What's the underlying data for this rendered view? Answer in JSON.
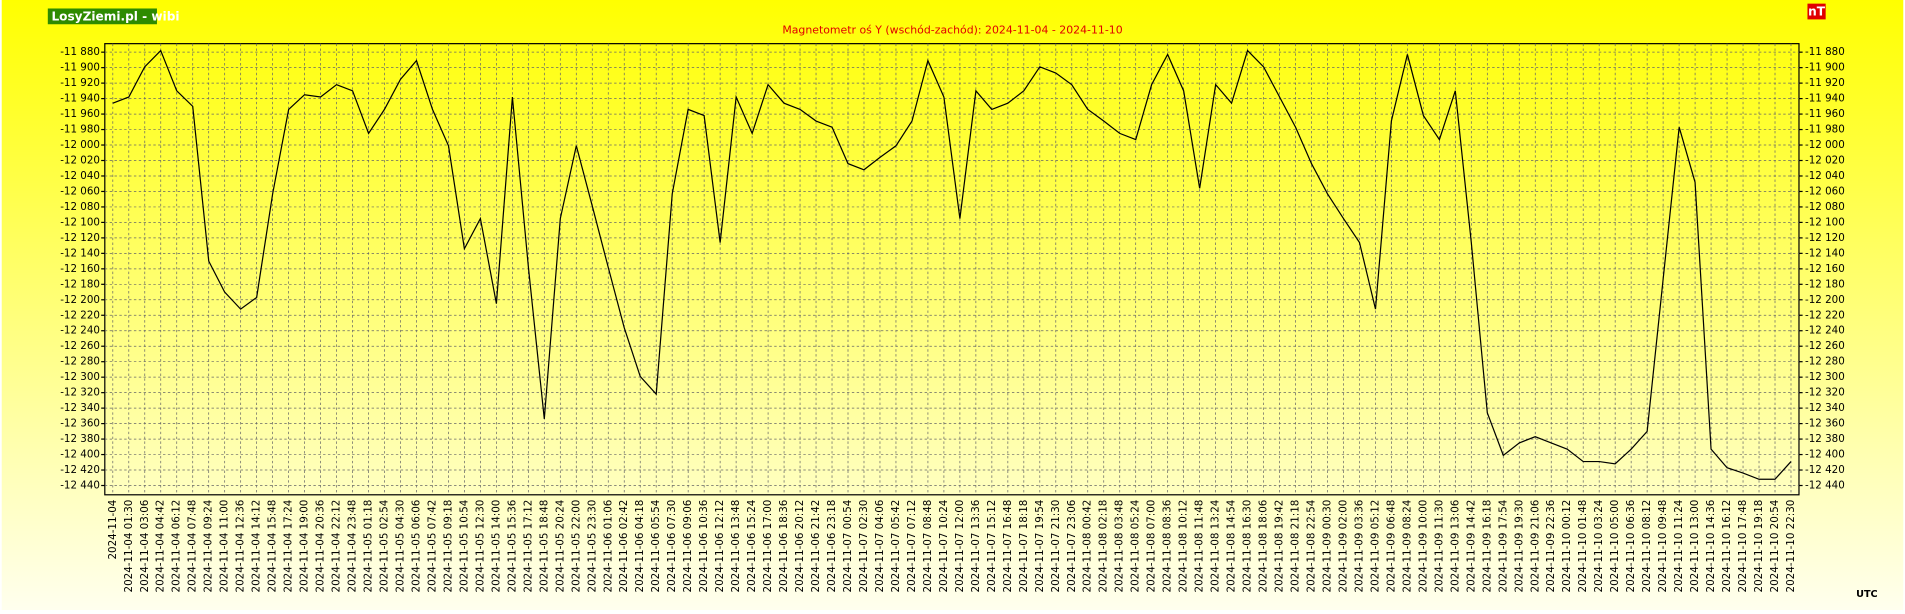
{
  "logo": "LosyZiemi.pl - wibi",
  "unit": "nT",
  "timezone": "UTC",
  "chart_data": {
    "type": "line",
    "title": "Magnetometr oś Y (wschód-zachód): 2024-11-04 - 2024-11-10",
    "grid": true,
    "ylim": [
      -12452,
      -11869
    ],
    "yticks": [
      {
        "value": -11880,
        "label": "-11 880"
      },
      {
        "value": -11900,
        "label": "-11 900"
      },
      {
        "value": -11920,
        "label": "-11 920"
      },
      {
        "value": -11940,
        "label": "-11 940"
      },
      {
        "value": -11960,
        "label": "-11 960"
      },
      {
        "value": -11980,
        "label": "-11 980"
      },
      {
        "value": -12000,
        "label": "-12 000"
      },
      {
        "value": -12020,
        "label": "-12 020"
      },
      {
        "value": -12040,
        "label": "-12 040"
      },
      {
        "value": -12060,
        "label": "-12 060"
      },
      {
        "value": -12080,
        "label": "-12 080"
      },
      {
        "value": -12100,
        "label": "-12 100"
      },
      {
        "value": -12120,
        "label": "-12 120"
      },
      {
        "value": -12140,
        "label": "-12 140"
      },
      {
        "value": -12160,
        "label": "-12 160"
      },
      {
        "value": -12180,
        "label": "-12 180"
      },
      {
        "value": -12200,
        "label": "-12 200"
      },
      {
        "value": -12220,
        "label": "-12 220"
      },
      {
        "value": -12240,
        "label": "-12 240"
      },
      {
        "value": -12260,
        "label": "-12 260"
      },
      {
        "value": -12280,
        "label": "-12 280"
      },
      {
        "value": -12300,
        "label": "-12 300"
      },
      {
        "value": -12320,
        "label": "-12 320"
      },
      {
        "value": -12340,
        "label": "-12 340"
      },
      {
        "value": -12360,
        "label": "-12 360"
      },
      {
        "value": -12380,
        "label": "-12 380"
      },
      {
        "value": -12400,
        "label": "-12 400"
      },
      {
        "value": -12420,
        "label": "-12 420"
      },
      {
        "value": -12440,
        "label": "-12 440"
      }
    ],
    "categories": [
      "2024-11-04",
      "2024-11-04 01:30",
      "2024-11-04 03:06",
      "2024-11-04 04:42",
      "2024-11-04 06:12",
      "2024-11-04 07:48",
      "2024-11-04 09:24",
      "2024-11-04 11:00",
      "2024-11-04 12:36",
      "2024-11-04 14:12",
      "2024-11-04 15:48",
      "2024-11-04 17:24",
      "2024-11-04 19:00",
      "2024-11-04 20:36",
      "2024-11-04 22:12",
      "2024-11-04 23:48",
      "2024-11-05 01:18",
      "2024-11-05 02:54",
      "2024-11-05 04:30",
      "2024-11-05 06:06",
      "2024-11-05 07:42",
      "2024-11-05 09:18",
      "2024-11-05 10:54",
      "2024-11-05 12:30",
      "2024-11-05 14:00",
      "2024-11-05 15:36",
      "2024-11-05 17:12",
      "2024-11-05 18:48",
      "2024-11-05 20:24",
      "2024-11-05 22:00",
      "2024-11-05 23:30",
      "2024-11-06 01:06",
      "2024-11-06 02:42",
      "2024-11-06 04:18",
      "2024-11-06 05:54",
      "2024-11-06 07:30",
      "2024-11-06 09:06",
      "2024-11-06 10:36",
      "2024-11-06 12:12",
      "2024-11-06 13:48",
      "2024-11-06 15:24",
      "2024-11-06 17:00",
      "2024-11-06 18:36",
      "2024-11-06 20:12",
      "2024-11-06 21:42",
      "2024-11-06 23:18",
      "2024-11-07 00:54",
      "2024-11-07 02:30",
      "2024-11-07 04:06",
      "2024-11-07 05:42",
      "2024-11-07 07:12",
      "2024-11-07 08:48",
      "2024-11-07 10:24",
      "2024-11-07 12:00",
      "2024-11-07 13:36",
      "2024-11-07 15:12",
      "2024-11-07 16:48",
      "2024-11-07 18:18",
      "2024-11-07 19:54",
      "2024-11-07 21:30",
      "2024-11-07 23:06",
      "2024-11-08 00:42",
      "2024-11-08 02:18",
      "2024-11-08 03:48",
      "2024-11-08 05:24",
      "2024-11-08 07:00",
      "2024-11-08 08:36",
      "2024-11-08 10:12",
      "2024-11-08 11:48",
      "2024-11-08 13:24",
      "2024-11-08 14:54",
      "2024-11-08 16:30",
      "2024-11-08 18:06",
      "2024-11-08 19:42",
      "2024-11-08 21:18",
      "2024-11-08 22:54",
      "2024-11-09 00:30",
      "2024-11-09 02:00",
      "2024-11-09 03:36",
      "2024-11-09 05:12",
      "2024-11-09 06:48",
      "2024-11-09 08:24",
      "2024-11-09 10:00",
      "2024-11-09 11:30",
      "2024-11-09 13:06",
      "2024-11-09 14:42",
      "2024-11-09 16:18",
      "2024-11-09 17:54",
      "2024-11-09 19:30",
      "2024-11-09 21:06",
      "2024-11-09 22:36",
      "2024-11-10 00:12",
      "2024-11-10 01:48",
      "2024-11-10 03:24",
      "2024-11-10 05:00",
      "2024-11-10 06:36",
      "2024-11-10 08:12",
      "2024-11-10 09:48",
      "2024-11-10 11:24",
      "2024-11-10 13:00",
      "2024-11-10 14:36",
      "2024-11-10 16:12",
      "2024-11-10 17:48",
      "2024-11-10 19:18",
      "2024-11-10 20:54",
      "2024-11-10 22:30"
    ],
    "series": [
      {
        "color": "#000000",
        "values": [
          -11946,
          -11938,
          -11899,
          -11878,
          -11930,
          -11950,
          -12150,
          -12190,
          -12212,
          -12197,
          -12063,
          -11954,
          -11935,
          -11938,
          -11922,
          -11930,
          -11985,
          -11954,
          -11915,
          -11891,
          -11954,
          -12001,
          -12134,
          -12095,
          -12205,
          -11938,
          -12158,
          -12354,
          -12095,
          -12001,
          -12079,
          -12158,
          -12236,
          -12299,
          -12322,
          -12063,
          -11954,
          -11962,
          -12126,
          -11938,
          -11985,
          -11922,
          -11946,
          -11954,
          -11969,
          -11977,
          -12024,
          -12032,
          -12016,
          -12001,
          -11969,
          -11891,
          -11938,
          -12095,
          -11930,
          -11954,
          -11946,
          -11930,
          -11899,
          -11907,
          -11922,
          -11954,
          -11969,
          -11985,
          -11993,
          -11922,
          -11883,
          -11930,
          -12056,
          -11922,
          -11946,
          -11878,
          -11899,
          -11938,
          -11977,
          -12024,
          -12063,
          -12095,
          -12126,
          -12212,
          -11969,
          -11883,
          -11962,
          -11993,
          -11930,
          -12126,
          -12346,
          -12401,
          -12385,
          -12377,
          -12385,
          -12393,
          -12409,
          -12409,
          -12412,
          -12393,
          -12370,
          -12173,
          -11977,
          -12048,
          -12393,
          -12417,
          -12424,
          -12432,
          -12432,
          -12409
        ]
      }
    ]
  }
}
